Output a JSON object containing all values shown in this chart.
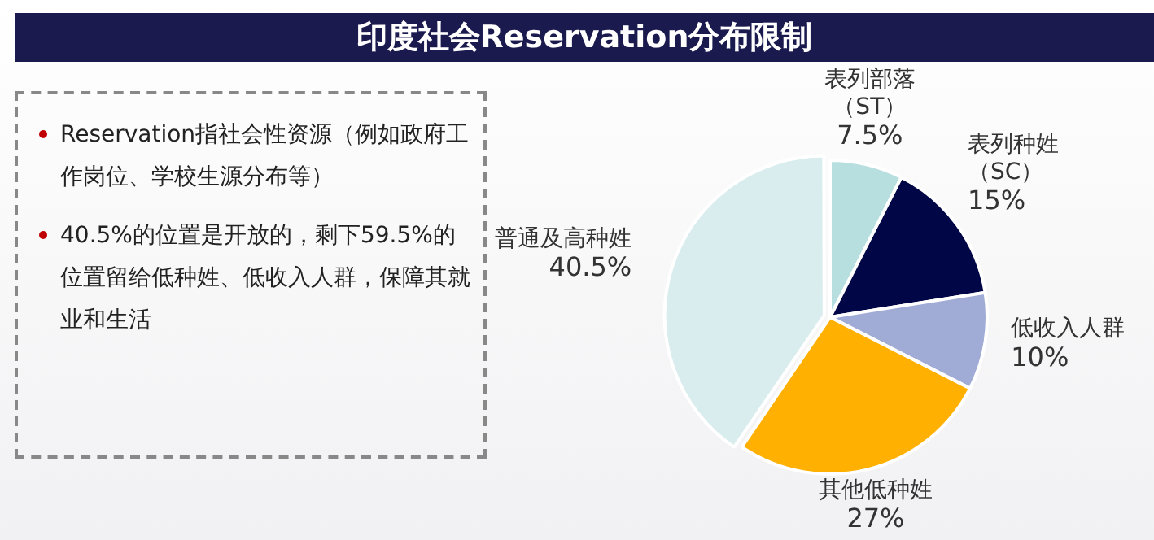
{
  "chart_data": {
    "type": "pie",
    "title": "印度社会Reservation分布限制",
    "categories": [
      "表列部落（ST）",
      "表列种姓（SC）",
      "低收入人群",
      "其他低种姓",
      "普通及高种姓"
    ],
    "values": [
      7.5,
      15,
      10,
      27,
      40.5
    ],
    "value_labels": [
      "7.5%",
      "15%",
      "10%",
      "27%",
      "40.5%"
    ],
    "colors": [
      "#b8dfe0",
      "#000646",
      "#a0acd6",
      "#ffb000",
      "#d9ecee"
    ],
    "legend": false,
    "annotations": [
      "Reservation指社会性资源（例如政府工作岗位、学校生源分布等）",
      "40.5%的位置是开放的，剩下59.5%的位置留给低种姓、低收入人群，保障其就业和生活"
    ]
  }
}
